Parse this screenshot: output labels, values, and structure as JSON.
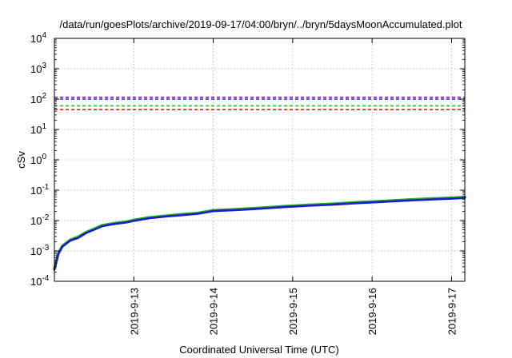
{
  "chart_data": {
    "type": "line",
    "title": "/data/run/goesPlots/archive/2019-09-17/04:00/bryn/../bryn/5daysMoonAccumulated.plot",
    "xlabel": "Coordinated Universal Time (UTC)",
    "ylabel": "cSv",
    "y_scale": "log",
    "ylim": [
      0.0001,
      10000
    ],
    "y_ticks": [
      {
        "value": 0.0001,
        "base": "10",
        "exp": "-4"
      },
      {
        "value": 0.001,
        "base": "10",
        "exp": "-3"
      },
      {
        "value": 0.01,
        "base": "10",
        "exp": "-2"
      },
      {
        "value": 0.1,
        "base": "10",
        "exp": "-1"
      },
      {
        "value": 1,
        "base": "10",
        "exp": "0"
      },
      {
        "value": 10,
        "base": "10",
        "exp": "1"
      },
      {
        "value": 100,
        "base": "10",
        "exp": "2"
      },
      {
        "value": 1000,
        "base": "10",
        "exp": "3"
      },
      {
        "value": 10000,
        "base": "10",
        "exp": "4"
      }
    ],
    "xlim": [
      "2019-09-12 00:00",
      "2019-09-17 04:00"
    ],
    "x_ticks": [
      {
        "value": "2019-09-13 00:00",
        "label": "2019-9-13"
      },
      {
        "value": "2019-09-14 00:00",
        "label": "2019-9-14"
      },
      {
        "value": "2019-09-15 00:00",
        "label": "2019-9-15"
      },
      {
        "value": "2019-09-16 00:00",
        "label": "2019-9-16"
      },
      {
        "value": "2019-09-17 00:00",
        "label": "2019-9-17"
      }
    ],
    "grid": true,
    "threshold_lines": [
      {
        "y": 115,
        "color": "#9400d3",
        "style": "dashed"
      },
      {
        "y": 100,
        "color": "#1e2bd8",
        "style": "dashed"
      },
      {
        "y": 60,
        "color": "#22c322",
        "style": "dashed"
      },
      {
        "y": 45,
        "color": "#e31a1a",
        "style": "dashed"
      }
    ],
    "series": [
      {
        "color": "#21b421",
        "x": [
          "2019-09-12 00:00",
          "2019-09-12 01:12",
          "2019-09-12 02:24",
          "2019-09-12 04:48",
          "2019-09-12 07:12",
          "2019-09-12 09:36",
          "2019-09-12 12:00",
          "2019-09-12 14:24",
          "2019-09-12 16:48",
          "2019-09-12 19:12",
          "2019-09-12 21:36",
          "2019-09-13 00:00",
          "2019-09-13 04:48",
          "2019-09-13 09:36",
          "2019-09-13 14:24",
          "2019-09-13 19:12",
          "2019-09-14 00:00",
          "2019-09-14 07:12",
          "2019-09-14 14:24",
          "2019-09-14 21:36",
          "2019-09-15 04:48",
          "2019-09-15 12:00",
          "2019-09-15 19:12",
          "2019-09-16 02:24",
          "2019-09-16 09:36",
          "2019-09-16 16:48",
          "2019-09-17 00:00",
          "2019-09-17 04:00"
        ],
        "y": [
          0.00026,
          0.00085,
          0.00145,
          0.0023,
          0.0029,
          0.0041,
          0.0053,
          0.0069,
          0.0077,
          0.0085,
          0.0091,
          0.0104,
          0.0127,
          0.0143,
          0.0159,
          0.0176,
          0.0217,
          0.0235,
          0.0262,
          0.0295,
          0.0326,
          0.0355,
          0.0395,
          0.0432,
          0.0477,
          0.0521,
          0.056,
          0.059
        ]
      },
      {
        "color": "#1a1ad0",
        "x": [
          "2019-09-12 00:00",
          "2019-09-12 01:12",
          "2019-09-12 02:24",
          "2019-09-12 04:48",
          "2019-09-12 07:12",
          "2019-09-12 09:36",
          "2019-09-12 12:00",
          "2019-09-12 14:24",
          "2019-09-12 16:48",
          "2019-09-12 19:12",
          "2019-09-12 21:36",
          "2019-09-13 00:00",
          "2019-09-13 04:48",
          "2019-09-13 09:36",
          "2019-09-13 14:24",
          "2019-09-13 19:12",
          "2019-09-14 00:00",
          "2019-09-14 07:12",
          "2019-09-14 14:24",
          "2019-09-14 21:36",
          "2019-09-15 04:48",
          "2019-09-15 12:00",
          "2019-09-15 19:12",
          "2019-09-16 02:24",
          "2019-09-16 09:36",
          "2019-09-16 16:48",
          "2019-09-17 00:00",
          "2019-09-17 04:00"
        ],
        "y": [
          0.00024,
          0.0008,
          0.00138,
          0.0022,
          0.0027,
          0.0039,
          0.005,
          0.0065,
          0.0073,
          0.008,
          0.0086,
          0.0098,
          0.012,
          0.0135,
          0.015,
          0.0166,
          0.0205,
          0.0222,
          0.0247,
          0.0278,
          0.0307,
          0.0334,
          0.0372,
          0.0407,
          0.0449,
          0.049,
          0.0527,
          0.0555
        ]
      }
    ]
  }
}
